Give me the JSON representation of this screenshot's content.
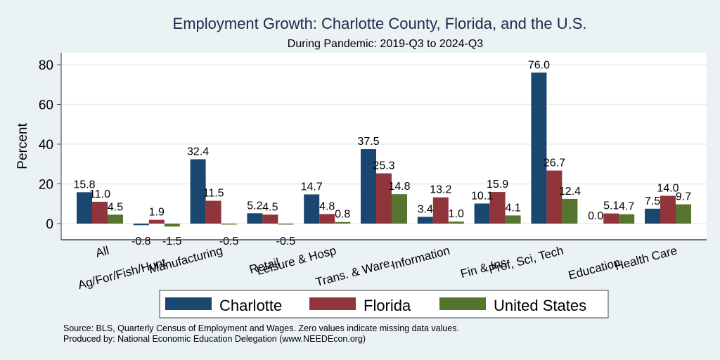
{
  "chart_data": {
    "type": "bar",
    "title": "Employment Growth: Charlotte County, Florida, and the U.S.",
    "subtitle": "During Pandemic: 2019-Q3 to 2024-Q3",
    "xlabel": "",
    "ylabel": "Percent",
    "ylim": [
      -8,
      86
    ],
    "yticks": [
      0,
      20,
      40,
      60,
      80
    ],
    "grid": true,
    "legend_position": "bottom",
    "categories": [
      "All",
      "Ag/For/Fish/Hunt",
      "Manufacturing",
      "Retail",
      "Leisure & Hosp",
      "Trans. & Ware.",
      "Information",
      "Fin & Ins",
      "Prof, Sci, Tech",
      "Education",
      "Health Care"
    ],
    "series": [
      {
        "name": "Charlotte",
        "color": "#1a476f",
        "values": [
          15.8,
          -0.8,
          32.4,
          5.2,
          14.7,
          37.5,
          3.4,
          10.1,
          76.0,
          0.0,
          7.5
        ]
      },
      {
        "name": "Florida",
        "color": "#90353b",
        "values": [
          11.0,
          1.9,
          11.5,
          4.5,
          4.8,
          25.3,
          13.2,
          15.9,
          26.7,
          5.1,
          14.0
        ]
      },
      {
        "name": "United States",
        "color": "#55752f",
        "values": [
          4.5,
          -1.5,
          -0.5,
          -0.5,
          0.8,
          14.8,
          1.0,
          4.1,
          12.4,
          4.7,
          9.7
        ]
      }
    ],
    "notes": [
      "Source: BLS, Quarterly Census of Employment and Wages. Zero values indicate missing data values.",
      "Produced by: National Economic Education Delegation (www.NEEDEcon.org)"
    ]
  }
}
